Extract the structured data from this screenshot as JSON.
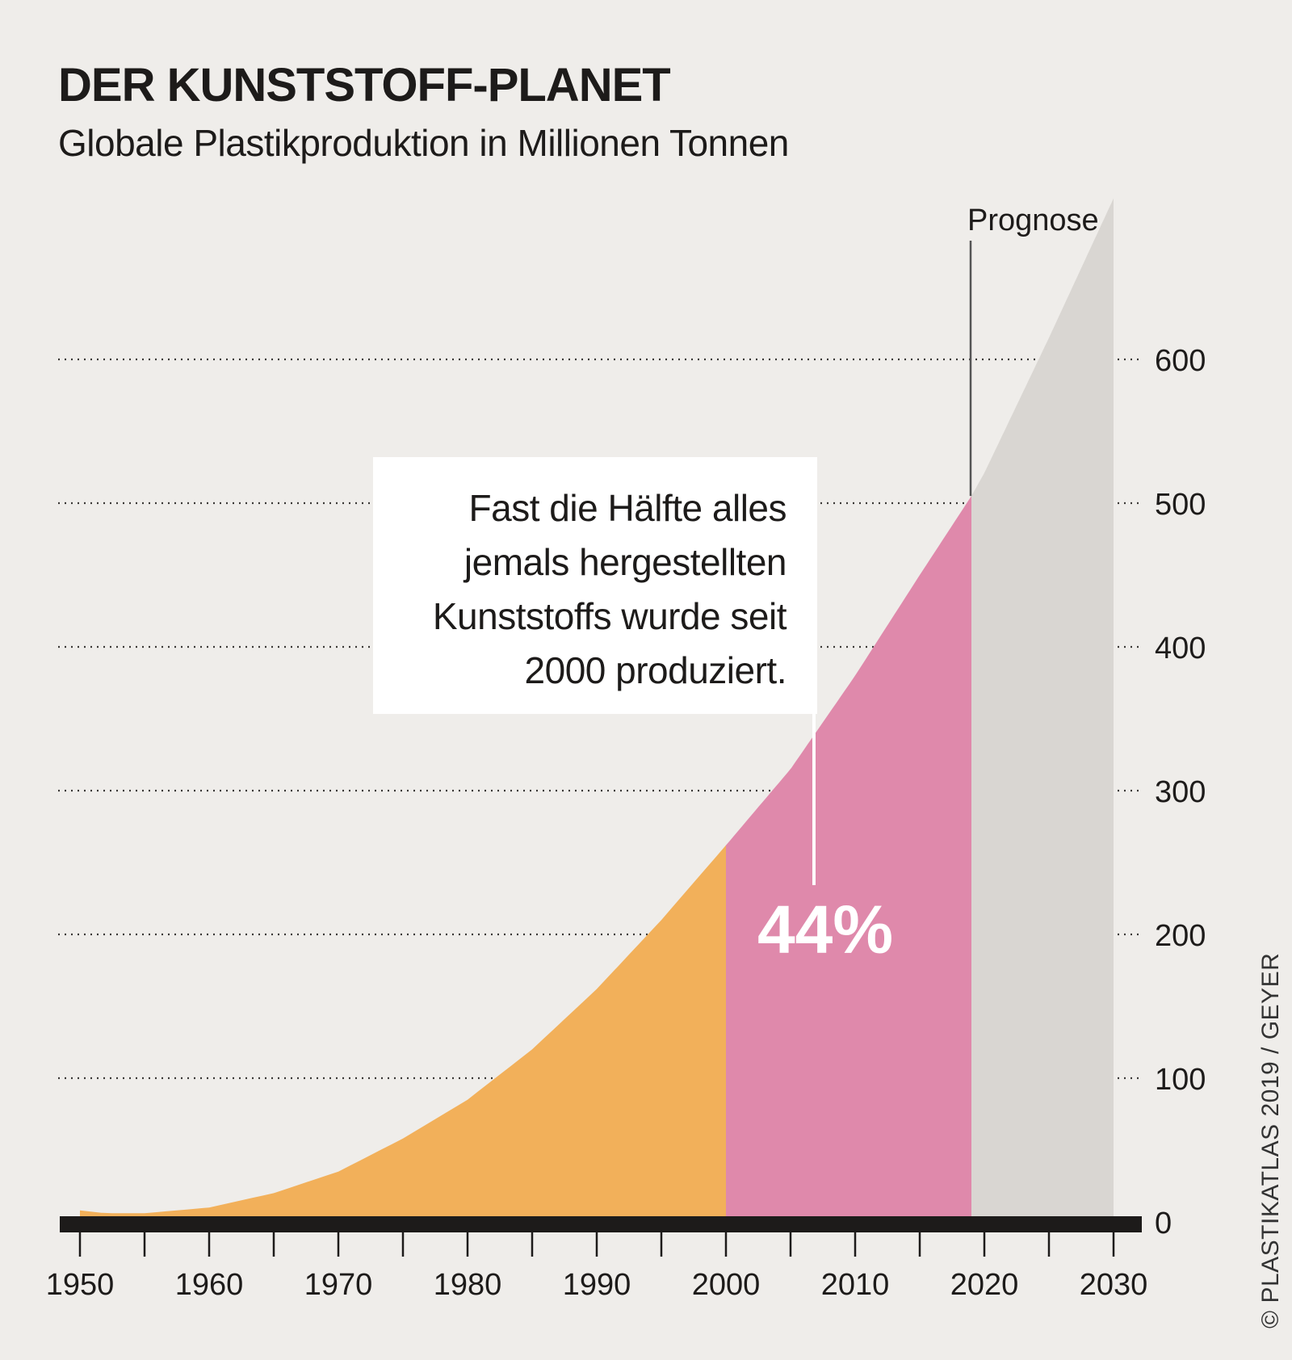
{
  "header": {
    "title": "DER KUNSTSTOFF-PLANET",
    "subtitle": "Globale Plastikproduktion in Millionen Tonnen"
  },
  "annotation": {
    "line1": "Fast die Hälfte alles",
    "line2": "jemals hergestellten",
    "line3": "Kunststoffs wurde seit",
    "line4": "2000 produziert.",
    "percent": "44%"
  },
  "credit": "© PLASTIKATLAS 2019 / GEYER",
  "colors": {
    "background": "#efedea",
    "before_2000": "#f2b05a",
    "since_2000": "#df89ab",
    "forecast": "#d9d6d2",
    "axis": "#1d1b1a"
  },
  "chart_data": {
    "type": "area",
    "title": "DER KUNSTSTOFF-PLANET",
    "subtitle": "Globale Plastikproduktion in Millionen Tonnen",
    "xlabel": "",
    "ylabel": "",
    "xlim": [
      1950,
      2030
    ],
    "ylim": [
      0,
      600
    ],
    "x_ticks": [
      1950,
      1960,
      1970,
      1980,
      1990,
      2000,
      2010,
      2020,
      2030
    ],
    "y_ticks": [
      0,
      100,
      200,
      300,
      400,
      500,
      600
    ],
    "grid": "dotted horizontal",
    "x": [
      1950,
      1952,
      1955,
      1960,
      1965,
      1970,
      1975,
      1980,
      1985,
      1990,
      1995,
      2000,
      2005,
      2010,
      2015,
      2019,
      2020,
      2025,
      2030
    ],
    "values": [
      8,
      6,
      6,
      10,
      20,
      35,
      58,
      85,
      120,
      162,
      210,
      262,
      315,
      380,
      450,
      505,
      521,
      615,
      712
    ],
    "segments": [
      {
        "from": 1950,
        "to": 2000,
        "color": "#f2b05a"
      },
      {
        "from": 2000,
        "to": 2019,
        "color": "#df89ab"
      },
      {
        "from": 2019,
        "to": 2030,
        "color": "#d9d6d2"
      }
    ],
    "forecast_start": 2019,
    "forecast_label": "Prognose",
    "share_since_2000": "44%"
  }
}
